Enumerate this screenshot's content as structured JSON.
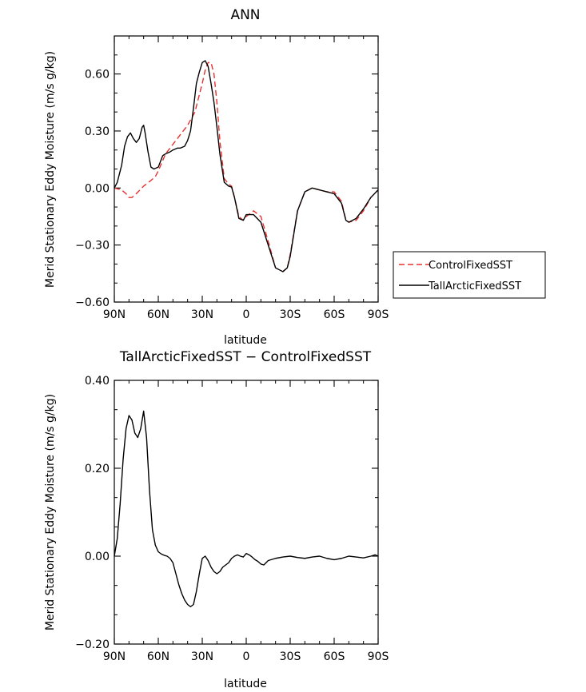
{
  "chart_data": [
    {
      "type": "line",
      "title": "ANN",
      "xlabel": "latitude",
      "ylabel": "Merid Stationary Eddy Moisture (m/s g/kg)",
      "xlim": [
        90,
        -90
      ],
      "ylim": [
        -0.6,
        0.8
      ],
      "x_tick_values": [
        90,
        60,
        30,
        0,
        -30,
        -60,
        -90
      ],
      "x_tick_labels": [
        "90N",
        "60N",
        "30N",
        "0",
        "30S",
        "60S",
        "90S"
      ],
      "y_tick_values": [
        -0.6,
        -0.3,
        0.0,
        0.3,
        0.6
      ],
      "y_tick_labels": [
        "−0.60",
        "−0.30",
        "0.00",
        "0.30",
        "0.60"
      ],
      "legend_position": "right-outside",
      "series": [
        {
          "name": "ControlFixedSST",
          "color": "#e8312f",
          "dash": "dashed",
          "x": [
            90,
            85,
            82,
            80,
            78,
            75,
            70,
            65,
            62,
            60,
            55,
            50,
            45,
            40,
            35,
            30,
            28,
            26,
            24,
            22,
            20,
            18,
            15,
            12,
            10,
            8,
            5,
            2,
            0,
            -5,
            -10,
            -15,
            -20,
            -25,
            -28,
            -30,
            -35,
            -40,
            -45,
            -50,
            -55,
            -60,
            -65,
            -68,
            -70,
            -75,
            -80,
            -85,
            -90
          ],
          "y": [
            0.0,
            -0.01,
            -0.03,
            -0.05,
            -0.05,
            -0.03,
            0.01,
            0.04,
            0.06,
            0.09,
            0.18,
            0.23,
            0.28,
            0.33,
            0.4,
            0.55,
            0.62,
            0.66,
            0.66,
            0.6,
            0.45,
            0.25,
            0.05,
            0.02,
            0.01,
            -0.05,
            -0.15,
            -0.17,
            -0.15,
            -0.12,
            -0.15,
            -0.28,
            -0.42,
            -0.44,
            -0.42,
            -0.35,
            -0.12,
            -0.02,
            0.0,
            -0.01,
            -0.02,
            -0.02,
            -0.07,
            -0.17,
            -0.18,
            -0.17,
            -0.12,
            -0.05,
            -0.01
          ]
        },
        {
          "name": "TallArcticFixedSST",
          "color": "#000000",
          "dash": "solid",
          "x": [
            90,
            88,
            85,
            83,
            81,
            79,
            77,
            75,
            73,
            71,
            70,
            69,
            67,
            65,
            63,
            60,
            57,
            55,
            52,
            50,
            47,
            45,
            42,
            40,
            38,
            36,
            34,
            32,
            30,
            28,
            26,
            24,
            22,
            20,
            18,
            15,
            12,
            10,
            8,
            5,
            2,
            0,
            -5,
            -10,
            -15,
            -20,
            -25,
            -28,
            -30,
            -35,
            -40,
            -45,
            -50,
            -55,
            -60,
            -65,
            -68,
            -70,
            -75,
            -80,
            -85,
            -90
          ],
          "y": [
            0.0,
            0.03,
            0.12,
            0.22,
            0.27,
            0.29,
            0.26,
            0.24,
            0.26,
            0.32,
            0.33,
            0.29,
            0.19,
            0.11,
            0.1,
            0.11,
            0.17,
            0.18,
            0.19,
            0.2,
            0.21,
            0.21,
            0.22,
            0.25,
            0.3,
            0.42,
            0.55,
            0.61,
            0.66,
            0.67,
            0.64,
            0.55,
            0.45,
            0.32,
            0.18,
            0.03,
            0.01,
            0.005,
            -0.05,
            -0.16,
            -0.17,
            -0.14,
            -0.14,
            -0.18,
            -0.3,
            -0.42,
            -0.44,
            -0.42,
            -0.36,
            -0.12,
            -0.02,
            0.0,
            -0.01,
            -0.02,
            -0.03,
            -0.08,
            -0.17,
            -0.18,
            -0.16,
            -0.11,
            -0.05,
            -0.01
          ]
        }
      ]
    },
    {
      "type": "line",
      "title": "TallArcticFixedSST − ControlFixedSST",
      "xlabel": "latitude",
      "ylabel": "Merid Stationary Eddy Moisture (m/s g/kg)",
      "xlim": [
        90,
        -90
      ],
      "ylim": [
        -0.2,
        0.4
      ],
      "x_tick_values": [
        90,
        60,
        30,
        0,
        -30,
        -60,
        -90
      ],
      "x_tick_labels": [
        "90N",
        "60N",
        "30N",
        "0",
        "30S",
        "60S",
        "90S"
      ],
      "y_tick_values": [
        -0.2,
        0.0,
        0.2,
        0.4
      ],
      "y_tick_labels": [
        "−0.20",
        "0.00",
        "0.20",
        "0.40"
      ],
      "series": [
        {
          "name": "TallArcticFixedSST − ControlFixedSST",
          "color": "#000000",
          "dash": "solid",
          "x": [
            90,
            88,
            86,
            84,
            82,
            80,
            78,
            76,
            74,
            72,
            70,
            68,
            66,
            64,
            62,
            60,
            58,
            56,
            54,
            52,
            50,
            48,
            46,
            44,
            42,
            40,
            38,
            36,
            34,
            32,
            30,
            28,
            26,
            24,
            22,
            20,
            18,
            16,
            14,
            12,
            10,
            8,
            6,
            4,
            2,
            0,
            -2,
            -4,
            -6,
            -8,
            -10,
            -12,
            -15,
            -20,
            -25,
            -30,
            -35,
            -40,
            -45,
            -50,
            -55,
            -60,
            -65,
            -70,
            -75,
            -80,
            -85,
            -88,
            -90
          ],
          "y": [
            0.0,
            0.04,
            0.12,
            0.22,
            0.29,
            0.32,
            0.31,
            0.28,
            0.27,
            0.29,
            0.33,
            0.27,
            0.15,
            0.06,
            0.025,
            0.01,
            0.005,
            0.002,
            0.0,
            -0.005,
            -0.015,
            -0.04,
            -0.065,
            -0.085,
            -0.1,
            -0.11,
            -0.115,
            -0.11,
            -0.08,
            -0.04,
            -0.005,
            0.0,
            -0.01,
            -0.025,
            -0.035,
            -0.04,
            -0.035,
            -0.025,
            -0.02,
            -0.015,
            -0.005,
            -0.0,
            0.003,
            0.0,
            -0.002,
            0.006,
            0.003,
            -0.002,
            -0.008,
            -0.012,
            -0.018,
            -0.02,
            -0.01,
            -0.005,
            -0.002,
            0.0,
            -0.003,
            -0.005,
            -0.002,
            0.0,
            -0.005,
            -0.008,
            -0.005,
            0.0,
            -0.002,
            -0.004,
            0.0,
            0.003,
            0.0
          ]
        }
      ]
    }
  ]
}
